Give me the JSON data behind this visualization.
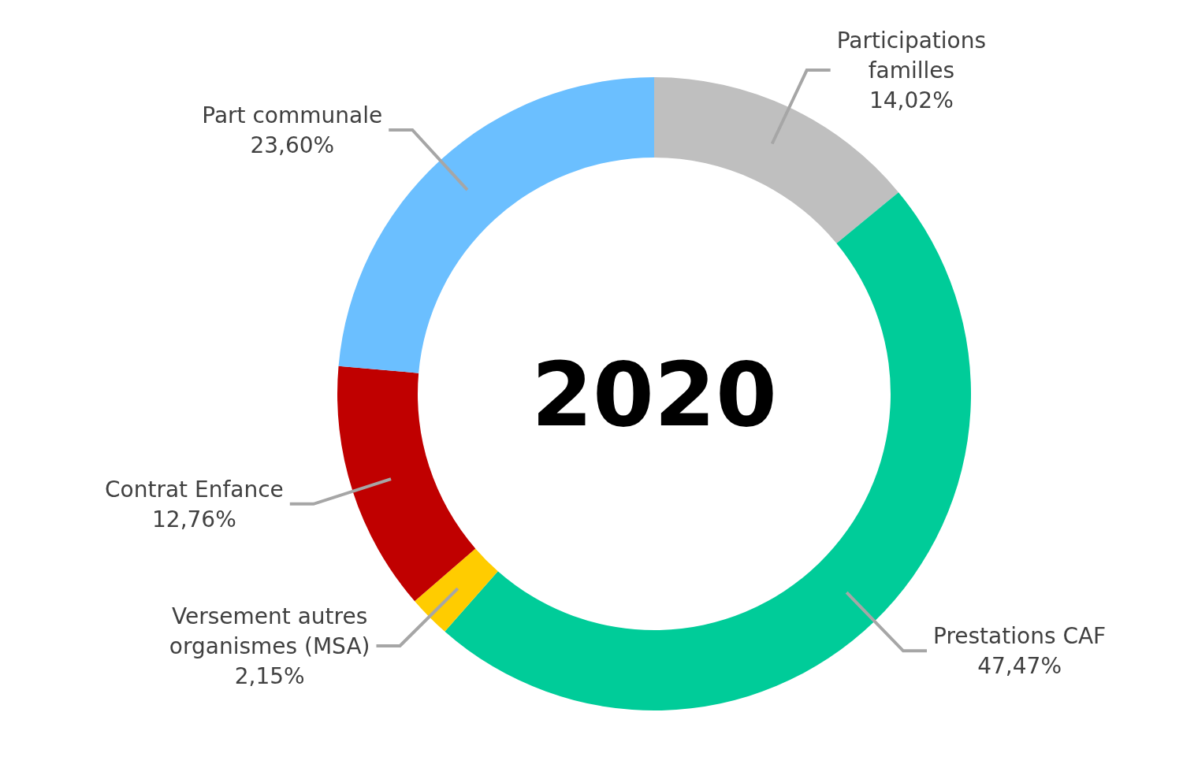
{
  "chart_data": {
    "type": "donut",
    "title": "2020",
    "categories": [
      "Participations familles",
      "Prestations CAF",
      "Versement autres organismes (MSA)",
      "Contrat Enfance",
      "Part communale"
    ],
    "values": [
      14.02,
      47.47,
      2.15,
      12.76,
      23.6
    ],
    "value_labels": [
      "14,02%",
      "47,47%",
      "2,15%",
      "12,76%",
      "23,60%"
    ],
    "colors": [
      "#bfbfbf",
      "#00cc99",
      "#ffcc00",
      "#c00000",
      "#6bbfff"
    ]
  }
}
